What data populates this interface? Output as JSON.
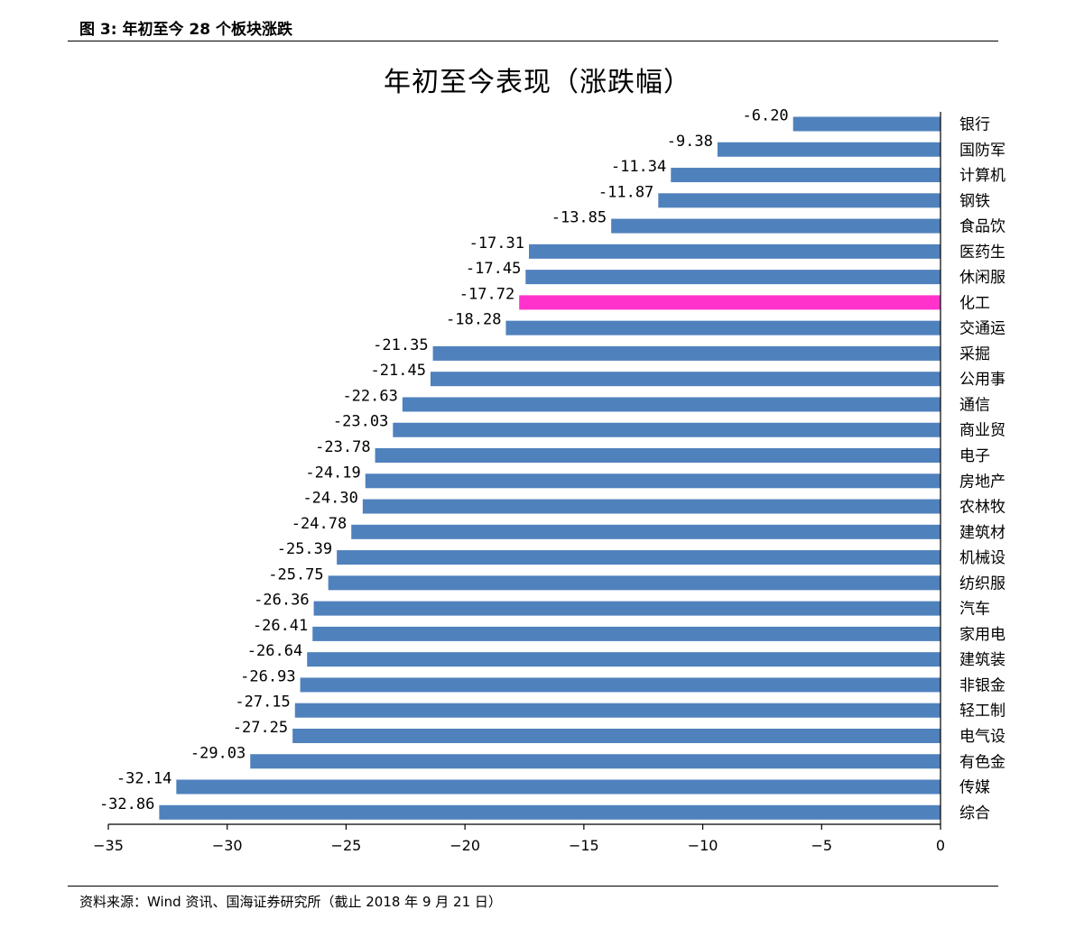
{
  "caption": "图 3:  年初至今 28 个板块涨跌",
  "source": "资料来源：Wind 资讯、国海证券研究所（截止 2018 年 9 月 21 日）",
  "colors": {
    "bar": "#4f81bd",
    "highlight": "#ff33cc"
  },
  "chart_data": {
    "type": "bar",
    "orientation": "horizontal",
    "title": "年初至今表现（涨跌幅）",
    "xlabel": "",
    "ylabel": "",
    "xlim": [
      -35,
      0
    ],
    "xticks": [
      -35,
      -30,
      -25,
      -20,
      -15,
      -10,
      -5,
      0
    ],
    "xtick_labels": [
      "−35",
      "−30",
      "−25",
      "−20",
      "−15",
      "−10",
      "−5",
      "0"
    ],
    "grid": false,
    "legend": "none",
    "highlight_category": "化工",
    "categories": [
      "银行",
      "国防军",
      "计算机",
      "钢铁",
      "食品饮",
      "医药生",
      "休闲服",
      "化工",
      "交通运",
      "采掘",
      "公用事",
      "通信",
      "商业贸",
      "电子",
      "房地产",
      "农林牧",
      "建筑材",
      "机械设",
      "纺织服",
      "汽车",
      "家用电",
      "建筑装",
      "非银金",
      "轻工制",
      "电气设",
      "有色金",
      "传媒",
      "综合"
    ],
    "value_labels": [
      "-6.20",
      "-9.38",
      "-11.34",
      "-11.87",
      "-13.85",
      "-17.31",
      "-17.45",
      "-17.72",
      "-18.28",
      "-21.35",
      "-21.45",
      "-22.63",
      "-23.03",
      "-23.78",
      "-24.19",
      "-24.30",
      "-24.78",
      "-25.39",
      "-25.75",
      "-26.36",
      "-26.41",
      "-26.64",
      "-26.93",
      "-27.15",
      "-27.25",
      "-29.03",
      "-32.14",
      "-32.86"
    ],
    "values": [
      -6.2,
      -9.38,
      -11.34,
      -11.87,
      -13.85,
      -17.31,
      -17.45,
      -17.72,
      -18.28,
      -21.35,
      -21.45,
      -22.63,
      -23.03,
      -23.78,
      -24.19,
      -24.3,
      -24.78,
      -25.39,
      -25.75,
      -26.36,
      -26.41,
      -26.64,
      -26.93,
      -27.15,
      -27.25,
      -29.03,
      -32.14,
      -32.86
    ]
  }
}
